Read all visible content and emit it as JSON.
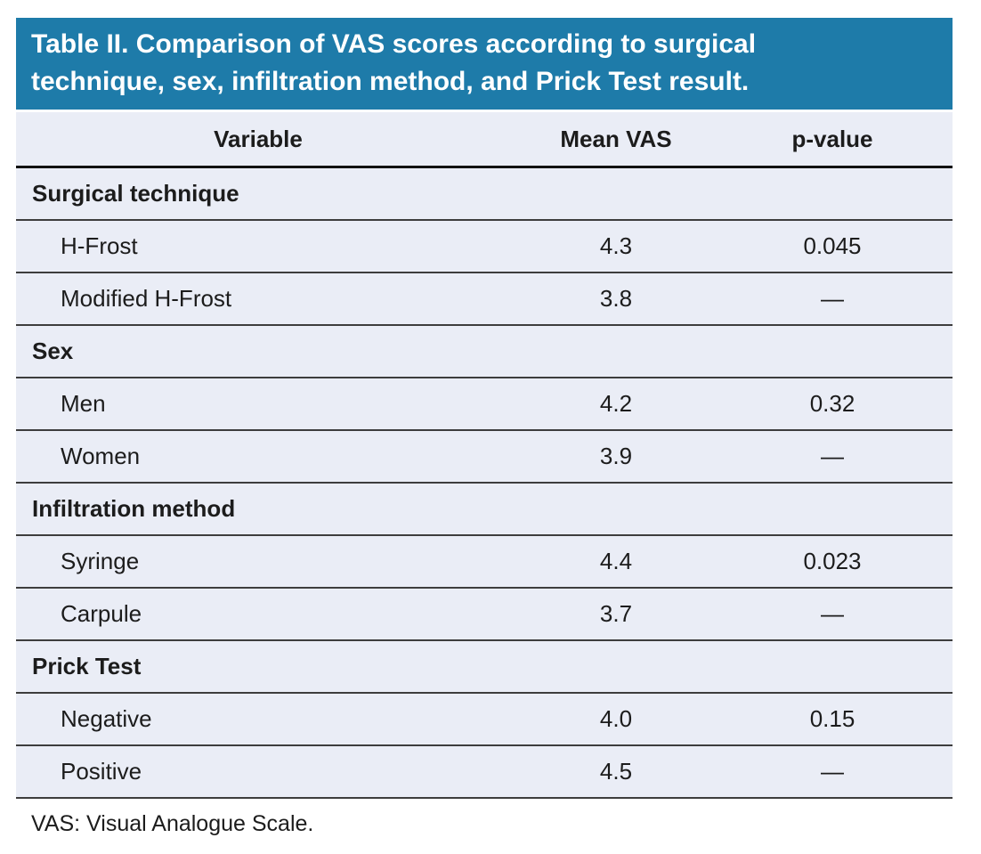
{
  "title": "Table II. Comparison of VAS scores according to surgical technique, sex, infiltration method, and Prick Test result.",
  "title_lines": [
    "Table II. Comparison of VAS scores according to surgical",
    "technique, sex, infiltration method, and Prick Test result."
  ],
  "columns": [
    "Variable",
    "Mean VAS",
    "p-value"
  ],
  "sections": [
    {
      "label": "Surgical technique",
      "rows": [
        {
          "variable": "H-Frost",
          "mean_vas": "4.3",
          "p_value": "0.045"
        },
        {
          "variable": "Modified H-Frost",
          "mean_vas": "3.8",
          "p_value": "—"
        }
      ]
    },
    {
      "label": "Sex",
      "rows": [
        {
          "variable": "Men",
          "mean_vas": "4.2",
          "p_value": "0.32"
        },
        {
          "variable": "Women",
          "mean_vas": "3.9",
          "p_value": "—"
        }
      ]
    },
    {
      "label": "Infiltration method",
      "rows": [
        {
          "variable": "Syringe",
          "mean_vas": "4.4",
          "p_value": "0.023"
        },
        {
          "variable": "Carpule",
          "mean_vas": "3.7",
          "p_value": "—"
        }
      ]
    },
    {
      "label": "Prick Test",
      "rows": [
        {
          "variable": "Negative",
          "mean_vas": "4.0",
          "p_value": "0.15"
        },
        {
          "variable": "Positive",
          "mean_vas": "4.5",
          "p_value": "—"
        }
      ]
    }
  ],
  "footnote": "VAS: Visual Analogue Scale.",
  "colors": {
    "banner_bg": "#1e7ba9",
    "banner_text": "#ffffff",
    "row_bg": "#eaedf6",
    "line": "#3d3d3d",
    "header_underline": "#111111",
    "text": "#1c1c1c"
  },
  "chart_data": {
    "type": "table",
    "title": "Table II. Comparison of VAS scores according to surgical technique, sex, infiltration method, and Prick Test result.",
    "columns": [
      "Variable",
      "Mean VAS",
      "p-value"
    ],
    "rows": [
      [
        "Surgical technique",
        "",
        ""
      ],
      [
        "H-Frost",
        "4.3",
        "0.045"
      ],
      [
        "Modified H-Frost",
        "3.8",
        "—"
      ],
      [
        "Sex",
        "",
        ""
      ],
      [
        "Men",
        "4.2",
        "0.32"
      ],
      [
        "Women",
        "3.9",
        "—"
      ],
      [
        "Infiltration method",
        "",
        ""
      ],
      [
        "Syringe",
        "4.4",
        "0.023"
      ],
      [
        "Carpule",
        "3.7",
        "—"
      ],
      [
        "Prick Test",
        "",
        ""
      ],
      [
        "Negative",
        "4.0",
        "0.15"
      ],
      [
        "Positive",
        "4.5",
        "—"
      ]
    ],
    "footnote": "VAS: Visual Analogue Scale."
  }
}
